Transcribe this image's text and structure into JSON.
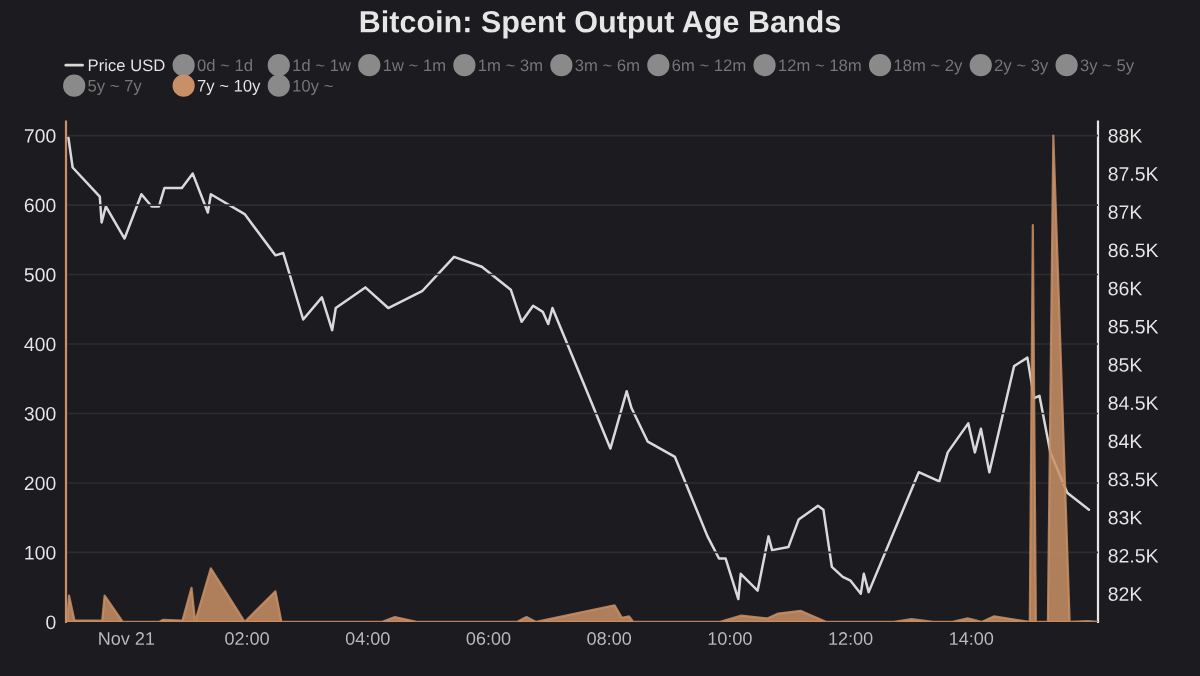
{
  "chart_data": {
    "type": "area",
    "title": "Bitcoin: Spent Output Age Bands",
    "xlim": [
      -1,
      16.1
    ],
    "xticks": [
      {
        "value": 0,
        "label": "Nov 21"
      },
      {
        "value": 2,
        "label": "02:00"
      },
      {
        "value": 4,
        "label": "04:00"
      },
      {
        "value": 6,
        "label": "06:00"
      },
      {
        "value": 8,
        "label": "08:00"
      },
      {
        "value": 10,
        "label": "10:00"
      },
      {
        "value": 12,
        "label": "12:00"
      },
      {
        "value": 14,
        "label": "14:00"
      }
    ],
    "ylim": [
      0,
      720
    ],
    "yticks": [
      0,
      100,
      200,
      300,
      400,
      500,
      600,
      700
    ],
    "y2lim": [
      81630,
      88180
    ],
    "y2ticks": [
      {
        "value": 82000,
        "label": "82K"
      },
      {
        "value": 82500,
        "label": "82.5K"
      },
      {
        "value": 83000,
        "label": "83K"
      },
      {
        "value": 83500,
        "label": "83.5K"
      },
      {
        "value": 84000,
        "label": "84K"
      },
      {
        "value": 84500,
        "label": "84.5K"
      },
      {
        "value": 85000,
        "label": "85K"
      },
      {
        "value": 85500,
        "label": "85.5K"
      },
      {
        "value": 86000,
        "label": "86K"
      },
      {
        "value": 86500,
        "label": "86.5K"
      },
      {
        "value": 87000,
        "label": "87K"
      },
      {
        "value": 87500,
        "label": "87.5K"
      },
      {
        "value": 88000,
        "label": "88K"
      }
    ],
    "grid": "y",
    "legend": "top",
    "series": [
      {
        "name": "Price USD",
        "type": "line",
        "axis": "y2",
        "color": "#d9d9d9",
        "x": [
          -0.96,
          -0.89,
          -0.44,
          -0.41,
          -0.34,
          -0.03,
          0.25,
          0.42,
          0.54,
          0.63,
          0.92,
          1.1,
          1.35,
          1.4,
          1.96,
          2.47,
          2.6,
          2.93,
          3.24,
          3.41,
          3.47,
          3.96,
          4.34,
          4.9,
          5.43,
          5.89,
          6.37,
          6.55,
          6.74,
          6.9,
          6.99,
          7.06,
          7.6,
          8.02,
          8.29,
          8.37,
          8.64,
          9.09,
          9.63,
          9.82,
          9.93,
          10.14,
          10.18,
          10.46,
          10.64,
          10.7,
          10.97,
          11.14,
          11.46,
          11.55,
          11.69,
          11.87,
          12.0,
          12.17,
          12.22,
          12.3,
          13.13,
          13.47,
          13.61,
          13.95,
          14.06,
          14.16,
          14.3,
          14.71,
          14.93,
          15.04,
          15.13,
          15.31,
          15.59,
          15.95
        ],
        "values": [
          87970,
          87580,
          87200,
          86860,
          87070,
          86650,
          87230,
          87070,
          87070,
          87310,
          87310,
          87500,
          86990,
          87230,
          86970,
          86430,
          86460,
          85590,
          85880,
          85450,
          85740,
          86010,
          85740,
          85960,
          86410,
          86280,
          85980,
          85560,
          85770,
          85690,
          85530,
          85740,
          84710,
          83900,
          84650,
          84430,
          83990,
          83790,
          82750,
          82460,
          82460,
          81930,
          82260,
          82040,
          82750,
          82570,
          82610,
          82970,
          83150,
          83100,
          82350,
          82220,
          82170,
          82000,
          82260,
          82020,
          83590,
          83470,
          83850,
          84230,
          83850,
          84160,
          83590,
          84980,
          85090,
          84560,
          84590,
          83850,
          83320,
          83100
        ]
      },
      {
        "name": "0d ~ 1d",
        "color": "#8a8a8a"
      },
      {
        "name": "1d ~ 1w",
        "color": "#8a8a8a"
      },
      {
        "name": "1w ~ 1m",
        "color": "#8a8a8a"
      },
      {
        "name": "1m ~ 3m",
        "color": "#8a8a8a"
      },
      {
        "name": "3m ~ 6m",
        "color": "#8a8a8a"
      },
      {
        "name": "6m ~ 12m",
        "color": "#8a8a8a"
      },
      {
        "name": "12m ~ 18m",
        "color": "#8a8a8a"
      },
      {
        "name": "18m ~ 2y",
        "color": "#8a8a8a"
      },
      {
        "name": "2y ~ 3y",
        "color": "#8a8a8a"
      },
      {
        "name": "3y ~ 5y",
        "color": "#8a8a8a"
      },
      {
        "name": "5y ~ 7y",
        "color": "#8a8a8a"
      },
      {
        "name": "7y ~ 10y",
        "color": "#c98f66",
        "x": [
          -0.98,
          -0.95,
          -0.86,
          -0.4,
          -0.36,
          -0.06,
          0.54,
          0.61,
          0.93,
          1.08,
          1.14,
          1.4,
          1.96,
          2.47,
          2.57,
          4.23,
          4.45,
          4.81,
          6.47,
          6.63,
          6.79,
          8.09,
          8.21,
          8.33,
          8.4,
          9.84,
          10.19,
          10.62,
          10.8,
          11.17,
          11.6,
          12.72,
          13.01,
          13.37,
          13.69,
          13.94,
          14.17,
          14.38,
          14.74,
          14.97,
          15.02,
          15.07,
          15.27,
          15.36,
          15.63,
          15.93,
          16.09
        ],
        "values": [
          0,
          38,
          2,
          2,
          38,
          0,
          0,
          3,
          2,
          49,
          0,
          77,
          0,
          44,
          0,
          0,
          7,
          0,
          0,
          7,
          0,
          24,
          6,
          8,
          0,
          0,
          9,
          5,
          12,
          16,
          0,
          0,
          4,
          0,
          0,
          5,
          0,
          8,
          3,
          0,
          571,
          0,
          0,
          700,
          0,
          1,
          0
        ]
      },
      {
        "name": "10y ~",
        "color": "#8a8a8a"
      }
    ]
  }
}
